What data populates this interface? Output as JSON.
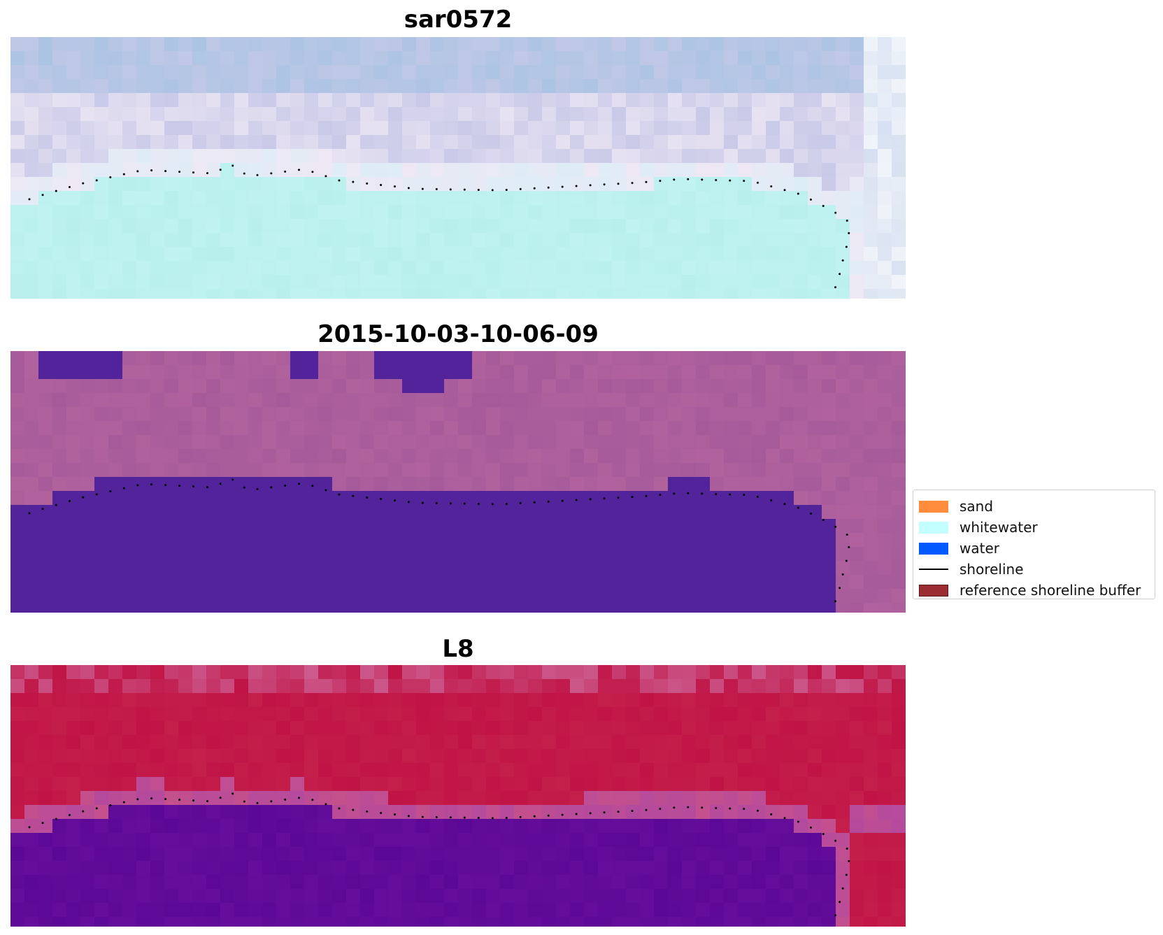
{
  "panels": [
    {
      "title": "sar0572",
      "style": "sar"
    },
    {
      "title": "2015-10-03-10-06-09",
      "style": "classified"
    },
    {
      "title": "L8",
      "style": "index"
    }
  ],
  "legend": {
    "items": [
      {
        "label": "sand",
        "kind": "patch",
        "color": "#ff8c3c"
      },
      {
        "label": "whitewater",
        "kind": "patch",
        "color": "#c4ffff"
      },
      {
        "label": "water",
        "kind": "patch",
        "color": "#005aff"
      },
      {
        "label": "shoreline",
        "kind": "line",
        "color": "#000000"
      },
      {
        "label": "reference shoreline buffer",
        "kind": "patch",
        "color": "#9b2d32"
      }
    ]
  },
  "colors": {
    "sar_land": "#c9c9e8",
    "sar_sea": "#b8efec",
    "classified_land": "#a65a9a",
    "classified_water": "#52239a",
    "index_land": "#c01446",
    "index_water": "#5c0896",
    "shoreline": "#000000"
  }
}
